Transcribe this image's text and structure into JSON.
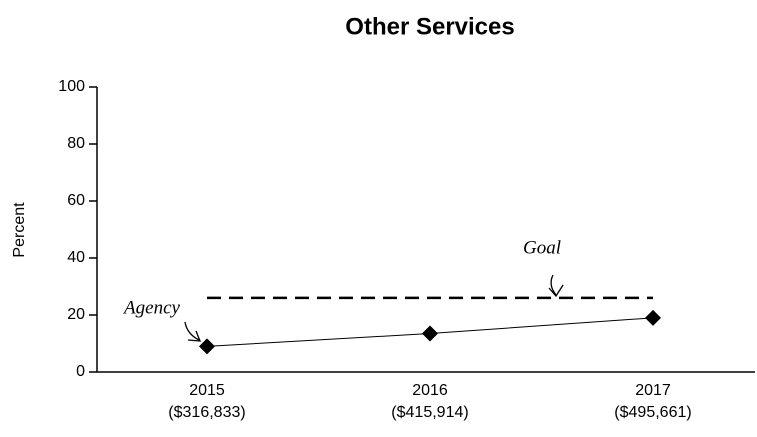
{
  "chart_data": {
    "type": "line",
    "title": "Other Services",
    "y_label": "Percent",
    "categories": [
      "2015",
      "2016",
      "2017"
    ],
    "category_amounts": [
      "($316,833)",
      "($415,914)",
      "($495,661)"
    ],
    "series": [
      {
        "name": "Agency",
        "color": "#000000",
        "values": [
          9,
          13.5,
          19
        ]
      },
      {
        "name": "Goal",
        "color": "#000000",
        "dashed": true,
        "values": [
          26,
          26,
          26
        ]
      }
    ],
    "ylim": [
      0,
      100
    ],
    "yticks": [
      0,
      20,
      40,
      60,
      80,
      100
    ]
  }
}
